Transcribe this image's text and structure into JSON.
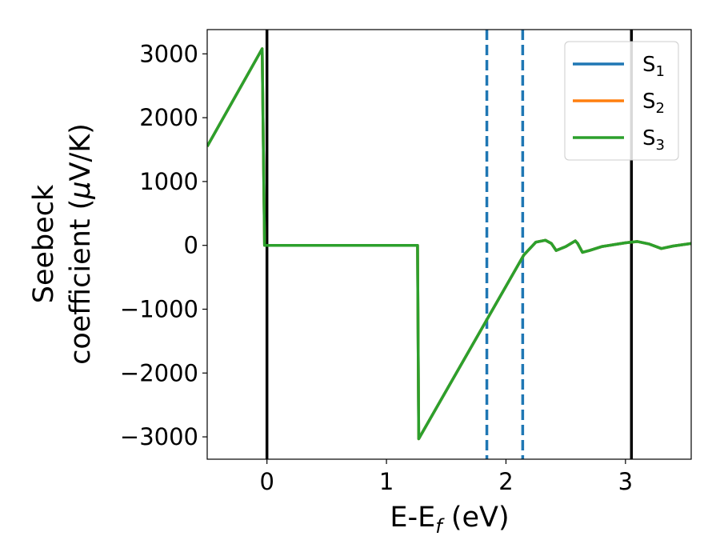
{
  "chart_data": {
    "type": "line",
    "xlabel": "E-E",
    "xlabel_sub": "f",
    "xlabel_unit": " (eV)",
    "ylabel_line1": "Seebeck",
    "ylabel_line2": "coefficient  (",
    "ylabel_mu": "μ",
    "ylabel_unit": "V/K)",
    "xlim": [
      -0.5,
      3.55
    ],
    "ylim": [
      -3350,
      3380
    ],
    "xticks": [
      0,
      1,
      2,
      3
    ],
    "yticks": [
      -3000,
      -2000,
      -1000,
      0,
      1000,
      2000,
      3000
    ],
    "grid": false,
    "legend_position": "top-right",
    "series": [
      {
        "name": "S",
        "sub": "1",
        "color": "#1f77b4",
        "x": [
          -0.5,
          -0.04,
          -0.02,
          1.26,
          1.27,
          2.15,
          2.25,
          2.33,
          2.38,
          2.42,
          2.5,
          2.58,
          2.6,
          2.64,
          2.7,
          2.8,
          2.9,
          3.0,
          3.1,
          3.2,
          3.3,
          3.4,
          3.55
        ],
        "y": [
          1550,
          3080,
          0,
          0,
          -3030,
          -150,
          50,
          80,
          30,
          -80,
          -20,
          70,
          30,
          -110,
          -80,
          -20,
          10,
          40,
          60,
          20,
          -50,
          -10,
          30
        ]
      },
      {
        "name": "S",
        "sub": "2",
        "color": "#ff7f0e",
        "x": [
          -0.5,
          -0.04,
          -0.02,
          1.26,
          1.27,
          2.15,
          2.25,
          2.33,
          2.38,
          2.42,
          2.5,
          2.58,
          2.6,
          2.64,
          2.7,
          2.8,
          2.9,
          3.0,
          3.1,
          3.2,
          3.3,
          3.4,
          3.55
        ],
        "y": [
          1550,
          3080,
          0,
          0,
          -3030,
          -150,
          50,
          80,
          30,
          -80,
          -20,
          70,
          30,
          -110,
          -80,
          -20,
          10,
          40,
          60,
          20,
          -50,
          -10,
          30
        ]
      },
      {
        "name": "S",
        "sub": "3",
        "color": "#2ca02c",
        "x": [
          -0.5,
          -0.04,
          -0.02,
          1.26,
          1.27,
          2.15,
          2.25,
          2.33,
          2.38,
          2.42,
          2.5,
          2.58,
          2.6,
          2.64,
          2.7,
          2.8,
          2.9,
          3.0,
          3.1,
          3.2,
          3.3,
          3.4,
          3.55
        ],
        "y": [
          1550,
          3080,
          0,
          0,
          -3030,
          -150,
          50,
          80,
          30,
          -80,
          -20,
          70,
          30,
          -110,
          -80,
          -20,
          10,
          40,
          60,
          20,
          -50,
          -10,
          30
        ]
      }
    ],
    "vlines": [
      {
        "x": 0.0,
        "color": "#000000",
        "style": "solid"
      },
      {
        "x": 3.05,
        "color": "#000000",
        "style": "solid"
      },
      {
        "x": 1.84,
        "color": "#1f77b4",
        "style": "dashed"
      },
      {
        "x": 2.14,
        "color": "#1f77b4",
        "style": "dashed"
      }
    ]
  }
}
